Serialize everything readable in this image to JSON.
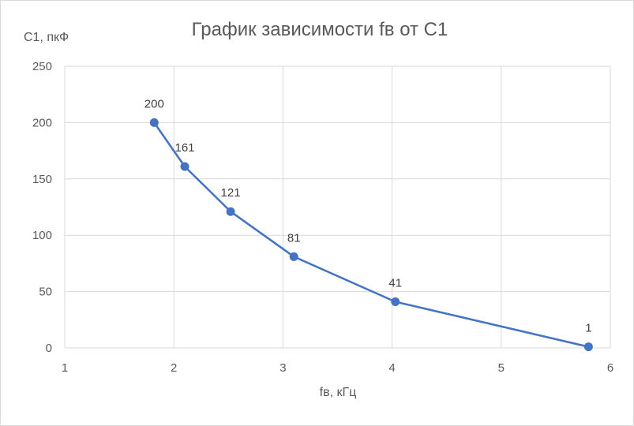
{
  "chart_data": {
    "type": "line",
    "title": "График зависимости fв от С1",
    "xlabel": "fв, кГц",
    "ylabel": "С1, пкФ",
    "xlim": [
      1,
      6
    ],
    "ylim": [
      0,
      250
    ],
    "x_ticks": [
      1,
      2,
      3,
      4,
      5,
      6
    ],
    "y_ticks": [
      0,
      50,
      100,
      150,
      200,
      250
    ],
    "grid": true,
    "legend": "none",
    "series": [
      {
        "color": "#4472c4",
        "points": [
          {
            "x": 1.82,
            "y": 200,
            "label": "200"
          },
          {
            "x": 2.1,
            "y": 161,
            "label": "161"
          },
          {
            "x": 2.52,
            "y": 121,
            "label": "121"
          },
          {
            "x": 3.1,
            "y": 81,
            "label": "81"
          },
          {
            "x": 4.03,
            "y": 41,
            "label": "41"
          },
          {
            "x": 5.8,
            "y": 1,
            "label": "1"
          }
        ]
      }
    ]
  }
}
